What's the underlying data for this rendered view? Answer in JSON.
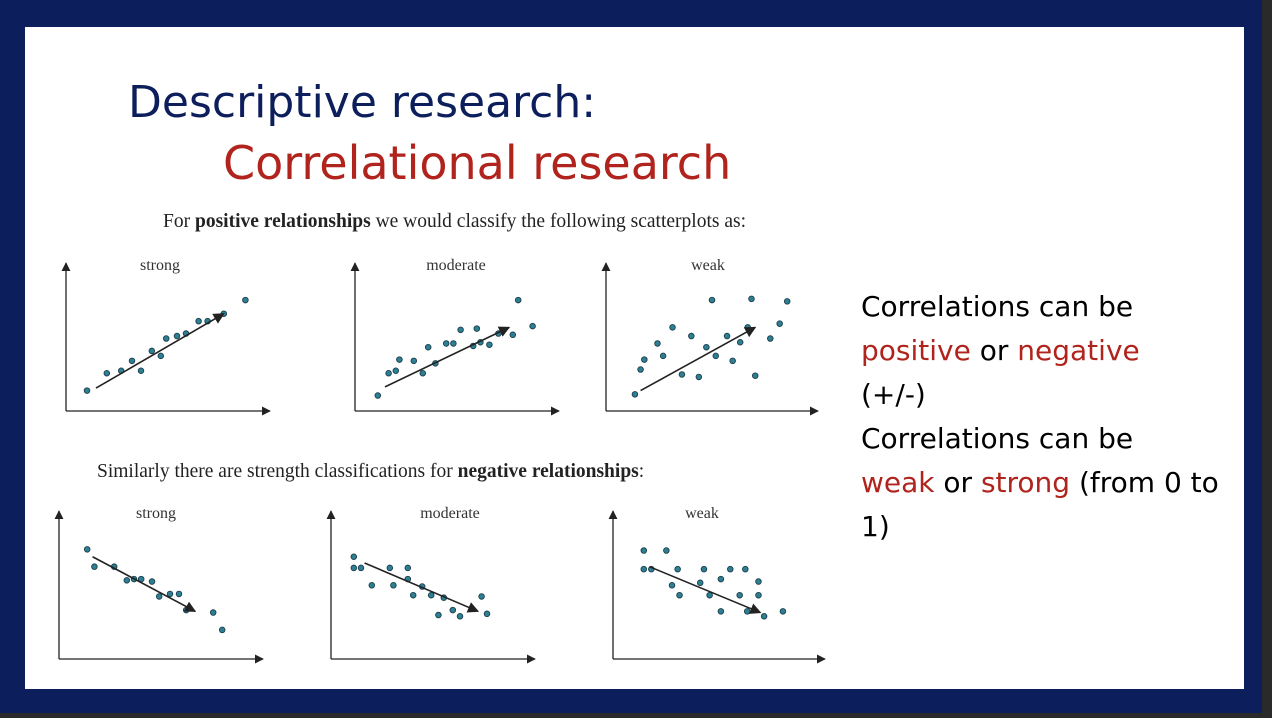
{
  "slide": {
    "title_line1": "Descriptive research:",
    "title_line2": "Correlational research"
  },
  "captions": {
    "positive": {
      "prefix": "For ",
      "bold": "positive relationships",
      "suffix": " we would classify the following scatterplots as:"
    },
    "negative": {
      "prefix": "Similarly there are strength classifications for ",
      "bold": "negative relationships",
      "suffix": ":"
    }
  },
  "notes": {
    "line1": "Correlations can be",
    "positive": "positive",
    "or1": " or ",
    "negative": "negative",
    "sign": "(+/-)",
    "line3": "Correlations can be",
    "weak": "weak",
    "or2": " or ",
    "strong": "strong",
    "range": " (from 0 to 1)"
  },
  "colors": {
    "frame": "#0c1f5c",
    "title": "#0c1f5c",
    "accent": "#b1231d",
    "point": "#2f7f94"
  },
  "chart_data": [
    {
      "type": "scatter",
      "title": "strong",
      "relationship": "positive",
      "points": [
        [
          0.5,
          1
        ],
        [
          1.6,
          2.4
        ],
        [
          2.4,
          2.6
        ],
        [
          3,
          3.4
        ],
        [
          3.5,
          2.6
        ],
        [
          4.1,
          4.2
        ],
        [
          4.6,
          3.8
        ],
        [
          4.9,
          5.2
        ],
        [
          5.5,
          5.4
        ],
        [
          6,
          5.6
        ],
        [
          6.7,
          6.6
        ],
        [
          7.2,
          6.6
        ],
        [
          8.1,
          7.2
        ],
        [
          9.3,
          8.3
        ]
      ],
      "trend": [
        [
          1,
          1.2
        ],
        [
          8.1,
          7.2
        ]
      ]
    },
    {
      "type": "scatter",
      "title": "moderate",
      "relationship": "positive",
      "points": [
        [
          0.6,
          0.6
        ],
        [
          1.2,
          2.4
        ],
        [
          1.6,
          2.6
        ],
        [
          1.8,
          3.5
        ],
        [
          2.6,
          3.4
        ],
        [
          3.1,
          2.4
        ],
        [
          3.4,
          4.5
        ],
        [
          3.8,
          3.2
        ],
        [
          4.4,
          4.8
        ],
        [
          4.8,
          4.8
        ],
        [
          5.2,
          5.9
        ],
        [
          5.9,
          4.6
        ],
        [
          6.1,
          6
        ],
        [
          6.3,
          4.9
        ],
        [
          6.8,
          4.7
        ],
        [
          7.3,
          5.6
        ],
        [
          8.1,
          5.5
        ],
        [
          8.4,
          8.3
        ],
        [
          9.2,
          6.2
        ]
      ],
      "trend": [
        [
          1,
          1.3
        ],
        [
          7.9,
          6.1
        ]
      ]
    },
    {
      "type": "scatter",
      "title": "weak",
      "relationship": "positive",
      "points": [
        [
          0.9,
          0.7
        ],
        [
          1.2,
          2.7
        ],
        [
          1.4,
          3.5
        ],
        [
          2.1,
          4.8
        ],
        [
          2.4,
          3.8
        ],
        [
          2.9,
          6.1
        ],
        [
          3.4,
          2.3
        ],
        [
          3.9,
          5.4
        ],
        [
          4.3,
          2.1
        ],
        [
          4.7,
          4.5
        ],
        [
          5,
          8.3
        ],
        [
          5.2,
          3.8
        ],
        [
          5.8,
          5.4
        ],
        [
          6.1,
          3.4
        ],
        [
          6.5,
          4.9
        ],
        [
          6.9,
          6.1
        ],
        [
          7.1,
          8.4
        ],
        [
          7.3,
          2.2
        ],
        [
          8.1,
          5.2
        ],
        [
          8.6,
          6.4
        ],
        [
          9,
          8.2
        ]
      ],
      "trend": [
        [
          1.2,
          1
        ],
        [
          7.3,
          6.1
        ]
      ]
    },
    {
      "type": "scatter",
      "title": "strong",
      "relationship": "negative",
      "points": [
        [
          0.9,
          8.2
        ],
        [
          1.3,
          6.8
        ],
        [
          2.4,
          6.8
        ],
        [
          3.1,
          5.7
        ],
        [
          3.5,
          5.8
        ],
        [
          3.9,
          5.8
        ],
        [
          4.5,
          5.6
        ],
        [
          4.9,
          4.4
        ],
        [
          5.5,
          4.6
        ],
        [
          6,
          4.6
        ],
        [
          6.4,
          3.3
        ],
        [
          7.9,
          3.1
        ],
        [
          8.4,
          1.7
        ]
      ],
      "trend": [
        [
          1.2,
          7.6
        ],
        [
          6.9,
          3.2
        ]
      ]
    },
    {
      "type": "scatter",
      "title": "moderate",
      "relationship": "negative",
      "points": [
        [
          0.6,
          7.6
        ],
        [
          0.6,
          6.7
        ],
        [
          1,
          6.7
        ],
        [
          1.6,
          5.3
        ],
        [
          2.6,
          6.7
        ],
        [
          2.8,
          5.3
        ],
        [
          3.6,
          6.7
        ],
        [
          3.9,
          4.5
        ],
        [
          3.6,
          5.8
        ],
        [
          4.4,
          5.2
        ],
        [
          4.9,
          4.5
        ],
        [
          5.3,
          2.9
        ],
        [
          5.6,
          4.3
        ],
        [
          6.1,
          3.3
        ],
        [
          6.5,
          2.8
        ],
        [
          7.7,
          4.4
        ],
        [
          8,
          3
        ]
      ],
      "trend": [
        [
          1.2,
          7.1
        ],
        [
          7.5,
          3.2
        ]
      ]
    },
    {
      "type": "scatter",
      "title": "weak",
      "relationship": "negative",
      "points": [
        [
          1,
          8.1
        ],
        [
          1,
          6.6
        ],
        [
          1.4,
          6.6
        ],
        [
          2.2,
          8.1
        ],
        [
          2.8,
          6.6
        ],
        [
          2.5,
          5.3
        ],
        [
          2.9,
          4.5
        ],
        [
          4.2,
          6.6
        ],
        [
          4,
          5.5
        ],
        [
          4.5,
          4.5
        ],
        [
          5.1,
          5.8
        ],
        [
          5.6,
          6.6
        ],
        [
          5.1,
          3.2
        ],
        [
          6.1,
          4.5
        ],
        [
          6.5,
          3.2
        ],
        [
          6.4,
          6.6
        ],
        [
          7.1,
          5.6
        ],
        [
          7.1,
          4.5
        ],
        [
          8.4,
          3.2
        ],
        [
          7.4,
          2.8
        ]
      ],
      "trend": [
        [
          1.3,
          6.8
        ],
        [
          7.2,
          3.1
        ]
      ]
    }
  ]
}
